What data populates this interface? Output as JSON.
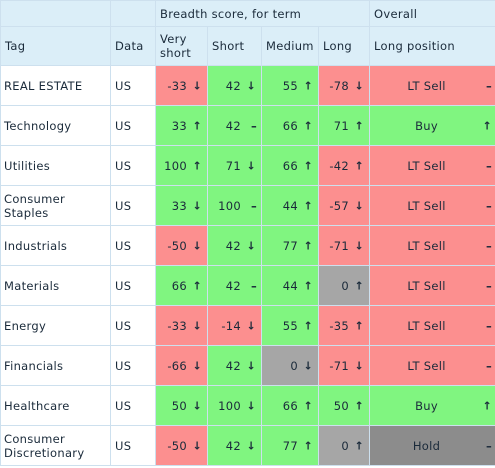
{
  "header": {
    "breadth_title": "Breadth score, for term",
    "overall_title": "Overall",
    "columns": {
      "tag": "Tag",
      "data": "Data",
      "very_short": "Very short",
      "short": "Short",
      "medium": "Medium",
      "long": "Long",
      "long_position": "Long position"
    }
  },
  "rows": [
    {
      "tag": "REAL ESTATE",
      "data": "US",
      "vs": {
        "value": "-33",
        "trend": "↓",
        "color": "red"
      },
      "s": {
        "value": "42",
        "trend": "↓",
        "color": "green"
      },
      "m": {
        "value": "55",
        "trend": "↑",
        "color": "green"
      },
      "l": {
        "value": "-78",
        "trend": "↓",
        "color": "red"
      },
      "pos": {
        "value": "LT Sell",
        "trend": "–",
        "color": "red"
      }
    },
    {
      "tag": "Technology",
      "data": "US",
      "vs": {
        "value": "33",
        "trend": "↑",
        "color": "green"
      },
      "s": {
        "value": "42",
        "trend": "–",
        "color": "green"
      },
      "m": {
        "value": "66",
        "trend": "↑",
        "color": "green"
      },
      "l": {
        "value": "71",
        "trend": "↑",
        "color": "green"
      },
      "pos": {
        "value": "Buy",
        "trend": "↑",
        "color": "green"
      }
    },
    {
      "tag": "Utilities",
      "data": "US",
      "vs": {
        "value": "100",
        "trend": "↑",
        "color": "green"
      },
      "s": {
        "value": "71",
        "trend": "↓",
        "color": "green"
      },
      "m": {
        "value": "66",
        "trend": "↑",
        "color": "green"
      },
      "l": {
        "value": "-42",
        "trend": "↑",
        "color": "red"
      },
      "pos": {
        "value": "LT Sell",
        "trend": "–",
        "color": "red"
      }
    },
    {
      "tag": "Consumer Staples",
      "data": "US",
      "vs": {
        "value": "33",
        "trend": "↓",
        "color": "green"
      },
      "s": {
        "value": "100",
        "trend": "–",
        "color": "green"
      },
      "m": {
        "value": "44",
        "trend": "↑",
        "color": "green"
      },
      "l": {
        "value": "-57",
        "trend": "↓",
        "color": "red"
      },
      "pos": {
        "value": "LT Sell",
        "trend": "–",
        "color": "red"
      }
    },
    {
      "tag": "Industrials",
      "data": "US",
      "vs": {
        "value": "-50",
        "trend": "↓",
        "color": "red"
      },
      "s": {
        "value": "42",
        "trend": "↓",
        "color": "green"
      },
      "m": {
        "value": "77",
        "trend": "↑",
        "color": "green"
      },
      "l": {
        "value": "-71",
        "trend": "↓",
        "color": "red"
      },
      "pos": {
        "value": "LT Sell",
        "trend": "–",
        "color": "red"
      }
    },
    {
      "tag": "Materials",
      "data": "US",
      "vs": {
        "value": "66",
        "trend": "↑",
        "color": "green"
      },
      "s": {
        "value": "42",
        "trend": "–",
        "color": "green"
      },
      "m": {
        "value": "44",
        "trend": "↑",
        "color": "green"
      },
      "l": {
        "value": "0",
        "trend": "↑",
        "color": "neutral"
      },
      "pos": {
        "value": "LT Sell",
        "trend": "–",
        "color": "red"
      }
    },
    {
      "tag": "Energy",
      "data": "US",
      "vs": {
        "value": "-33",
        "trend": "↓",
        "color": "red"
      },
      "s": {
        "value": "-14",
        "trend": "↓",
        "color": "red"
      },
      "m": {
        "value": "55",
        "trend": "↑",
        "color": "green"
      },
      "l": {
        "value": "-35",
        "trend": "↑",
        "color": "red"
      },
      "pos": {
        "value": "LT Sell",
        "trend": "–",
        "color": "red"
      }
    },
    {
      "tag": "Financials",
      "data": "US",
      "vs": {
        "value": "-66",
        "trend": "↓",
        "color": "red"
      },
      "s": {
        "value": "42",
        "trend": "↓",
        "color": "green"
      },
      "m": {
        "value": "0",
        "trend": "↓",
        "color": "neutral"
      },
      "l": {
        "value": "-71",
        "trend": "↓",
        "color": "red"
      },
      "pos": {
        "value": "LT Sell",
        "trend": "–",
        "color": "red"
      }
    },
    {
      "tag": "Healthcare",
      "data": "US",
      "vs": {
        "value": "50",
        "trend": "↓",
        "color": "green"
      },
      "s": {
        "value": "100",
        "trend": "↓",
        "color": "green"
      },
      "m": {
        "value": "66",
        "trend": "↑",
        "color": "green"
      },
      "l": {
        "value": "50",
        "trend": "↑",
        "color": "green"
      },
      "pos": {
        "value": "Buy",
        "trend": "↑",
        "color": "green"
      }
    },
    {
      "tag": "Consumer Discretionary",
      "data": "US",
      "vs": {
        "value": "-50",
        "trend": "↓",
        "color": "red"
      },
      "s": {
        "value": "42",
        "trend": "↓",
        "color": "green"
      },
      "m": {
        "value": "77",
        "trend": "↑",
        "color": "green"
      },
      "l": {
        "value": "0",
        "trend": "↑",
        "color": "neutral"
      },
      "pos": {
        "value": "Hold",
        "trend": "–",
        "color": "hold"
      }
    }
  ],
  "colors": {
    "green": "#80f580",
    "red": "#fc8f8f",
    "neutral": "#a6a6a6",
    "hold": "#8c8c8c",
    "header": "#dbeef8"
  }
}
